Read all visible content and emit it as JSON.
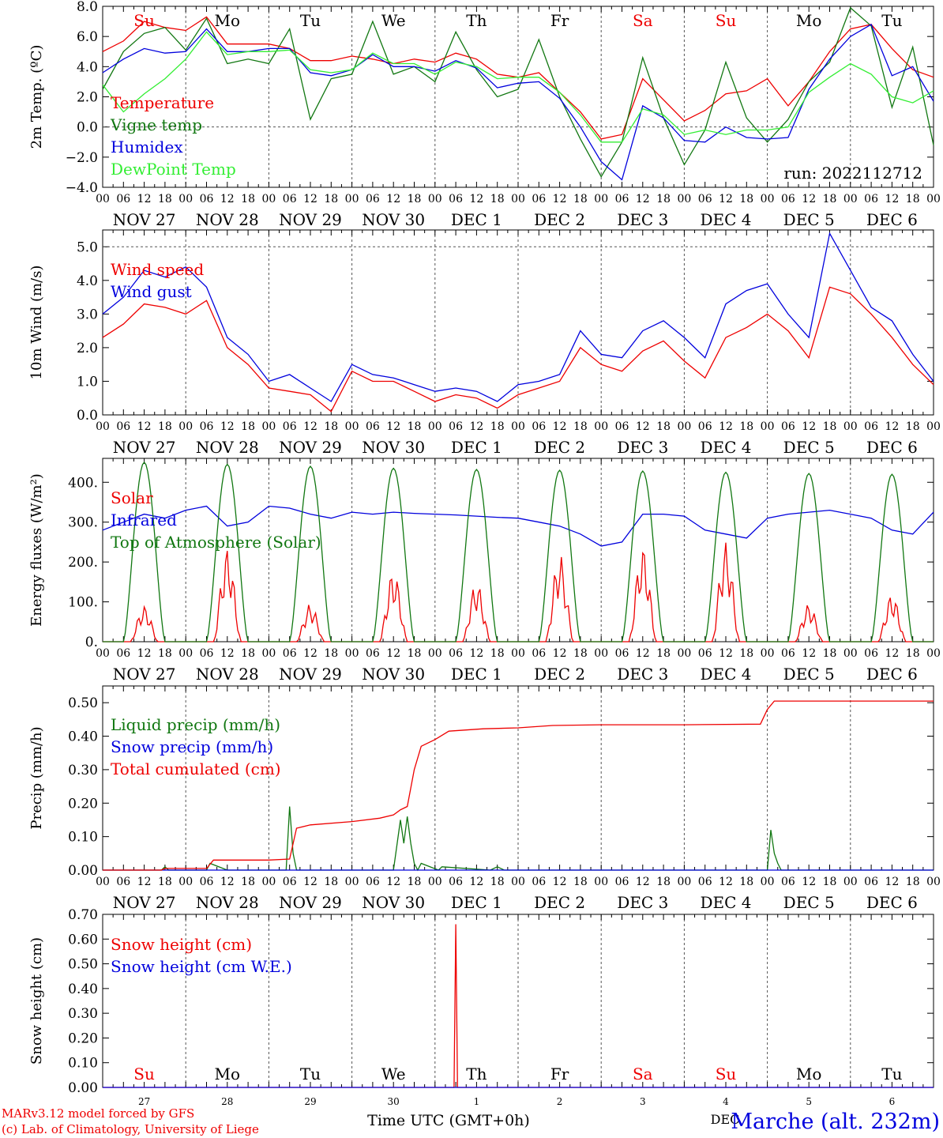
{
  "page": {
    "run_label": "run: 2022112712",
    "credit_model": "MARv3.12 model forced by GFS",
    "credit_lab": "(c) Lab. of Climatology, University of Liege",
    "location": "Marche (alt. 232m)",
    "time_axis_title": "Time UTC (GMT+0h)",
    "footer_month": "DEC"
  },
  "colors": {
    "red": "#ee0000",
    "green": "#117711",
    "blue": "#0000dd",
    "lime": "#33ee33",
    "grid": "#555555"
  },
  "time_axis": {
    "hour_ticks": [
      "00",
      "06",
      "12",
      "18"
    ],
    "end_tick": "00",
    "dates": [
      "NOV 27",
      "NOV 28",
      "NOV 29",
      "NOV 30",
      "DEC 1",
      "DEC 2",
      "DEC 3",
      "DEC 4",
      "DEC 5",
      "DEC 6"
    ],
    "weekdays": [
      {
        "label": "Su",
        "color": "#ee0000"
      },
      {
        "label": "Mo",
        "color": "#000000"
      },
      {
        "label": "Tu",
        "color": "#000000"
      },
      {
        "label": "We",
        "color": "#000000"
      },
      {
        "label": "Th",
        "color": "#000000"
      },
      {
        "label": "Fr",
        "color": "#000000"
      },
      {
        "label": "Sa",
        "color": "#ee0000"
      },
      {
        "label": "Su",
        "color": "#ee0000"
      },
      {
        "label": "Mo",
        "color": "#000000"
      },
      {
        "label": "Tu",
        "color": "#000000"
      }
    ],
    "day_numbers": [
      "27",
      "28",
      "29",
      "30",
      "1",
      "2",
      "3",
      "4",
      "5",
      "6"
    ]
  },
  "chart_data": [
    {
      "id": "temp",
      "type": "line",
      "ylabel": "2m Temp. (ºC)",
      "ylim": [
        -4,
        8
      ],
      "yticks": [
        "−4.0",
        "−2.0",
        "0.0",
        "2.0",
        "4.0",
        "6.0",
        "8.0"
      ],
      "ytick_values": [
        -4,
        -2,
        0,
        2,
        4,
        6,
        8
      ],
      "x_unit": "hours since NOV 27 00 UTC",
      "series": [
        {
          "name": "Temperature",
          "color": "#ee0000",
          "x": [
            0,
            6,
            12,
            18,
            24,
            30,
            36,
            42,
            48,
            54,
            60,
            66,
            72,
            78,
            84,
            90,
            96,
            102,
            108,
            114,
            120,
            126,
            132,
            138,
            144,
            150,
            156,
            162,
            168,
            174,
            180,
            186,
            192,
            198,
            204,
            210,
            216,
            222,
            228,
            234,
            240
          ],
          "y": [
            5,
            5.7,
            7,
            6.6,
            6.4,
            7.3,
            5.5,
            5.5,
            5.5,
            5.2,
            4.4,
            4.4,
            4.7,
            4.5,
            4.2,
            4.5,
            4.3,
            4.9,
            4.5,
            3.5,
            3.3,
            3.6,
            2.3,
            1,
            -0.8,
            -0.5,
            3.2,
            1.8,
            0.4,
            1.1,
            2.2,
            2.4,
            3.2,
            1.4,
            3,
            5,
            6.5,
            6.8,
            5.2,
            3.8,
            3.3
          ]
        },
        {
          "name": "Vigne temp",
          "color": "#117711",
          "x": [
            0,
            6,
            12,
            18,
            24,
            30,
            36,
            42,
            48,
            54,
            60,
            66,
            72,
            78,
            84,
            90,
            96,
            102,
            108,
            114,
            120,
            126,
            132,
            138,
            144,
            150,
            156,
            162,
            168,
            174,
            180,
            186,
            192,
            198,
            204,
            210,
            216,
            222,
            228,
            234,
            240
          ],
          "y": [
            2.5,
            5,
            6.2,
            6.6,
            5.1,
            7.2,
            4.2,
            4.5,
            4.2,
            6.5,
            0.5,
            3.2,
            3.5,
            7,
            3.5,
            4,
            3,
            6.3,
            3.8,
            2,
            2.5,
            5.8,
            2,
            -0.8,
            -3.3,
            -1,
            4.6,
            0.6,
            -2.5,
            -0.2,
            4.3,
            0.6,
            -1,
            0.5,
            3,
            4.3,
            7.9,
            6.7,
            1.3,
            5.3,
            -1.2
          ]
        },
        {
          "name": "Humidex",
          "color": "#0000dd",
          "x": [
            0,
            6,
            12,
            18,
            24,
            30,
            36,
            42,
            48,
            54,
            60,
            66,
            72,
            78,
            84,
            90,
            96,
            102,
            108,
            114,
            120,
            126,
            132,
            138,
            144,
            150,
            156,
            162,
            168,
            174,
            180,
            186,
            192,
            198,
            204,
            210,
            216,
            222,
            228,
            234,
            240
          ],
          "y": [
            3.6,
            4.5,
            5.2,
            4.9,
            5,
            6.5,
            5,
            5,
            5.2,
            5.2,
            3.6,
            3.4,
            3.8,
            4.8,
            4,
            4,
            3.7,
            4.4,
            3.9,
            2.6,
            2.9,
            3,
            1.9,
            0,
            -2.3,
            -3.5,
            1.4,
            0.6,
            -0.9,
            -1,
            0,
            -0.7,
            -0.8,
            -0.7,
            2.5,
            4.5,
            6,
            6.8,
            3.4,
            4,
            1.7
          ]
        },
        {
          "name": "DewPoint Temp",
          "color": "#33ee33",
          "x": [
            0,
            6,
            12,
            18,
            24,
            30,
            36,
            42,
            48,
            54,
            60,
            66,
            72,
            78,
            84,
            90,
            96,
            102,
            108,
            114,
            120,
            126,
            132,
            138,
            144,
            150,
            156,
            162,
            168,
            174,
            180,
            186,
            192,
            198,
            204,
            210,
            216,
            222,
            228,
            234,
            240
          ],
          "y": [
            2.8,
            1,
            2.2,
            3.2,
            4.5,
            6.3,
            4.8,
            5,
            5,
            5.1,
            3.8,
            3.6,
            3.8,
            4.9,
            4.2,
            4.2,
            3.5,
            4.3,
            4,
            3.2,
            3.3,
            3.3,
            2.3,
            0.8,
            -1,
            -1,
            1.2,
            0.8,
            -0.5,
            -0.2,
            -0.5,
            -0.2,
            -0.2,
            0,
            2.3,
            3.3,
            4.2,
            3.5,
            2,
            1.6,
            2.4
          ]
        }
      ],
      "legend_rows": 4
    },
    {
      "id": "wind",
      "type": "line",
      "ylabel": "10m Wind (m/s)",
      "ylim": [
        0,
        5.5
      ],
      "yticks": [
        "0.0",
        "1.0",
        "2.0",
        "3.0",
        "4.0",
        "5.0"
      ],
      "ytick_values": [
        0,
        1,
        2,
        3,
        4,
        5
      ],
      "hline": 5,
      "series": [
        {
          "name": "Wind speed",
          "color": "#ee0000",
          "x": [
            0,
            6,
            12,
            18,
            24,
            30,
            36,
            42,
            48,
            54,
            60,
            66,
            72,
            78,
            84,
            90,
            96,
            102,
            108,
            114,
            120,
            126,
            132,
            138,
            144,
            150,
            156,
            162,
            168,
            174,
            180,
            186,
            192,
            198,
            204,
            210,
            216,
            222,
            228,
            234,
            240
          ],
          "y": [
            2.3,
            2.7,
            3.3,
            3.2,
            3,
            3.4,
            2,
            1.5,
            0.8,
            0.7,
            0.6,
            0.1,
            1.3,
            1,
            1,
            0.7,
            0.4,
            0.6,
            0.5,
            0.2,
            0.6,
            0.8,
            1,
            2,
            1.5,
            1.3,
            1.9,
            2.2,
            1.6,
            1.1,
            2.3,
            2.6,
            3,
            2.5,
            1.7,
            3.8,
            3.6,
            3,
            2.3,
            1.5,
            0.9
          ]
        },
        {
          "name": "Wind gust",
          "color": "#0000dd",
          "x": [
            0,
            6,
            12,
            18,
            24,
            30,
            36,
            42,
            48,
            54,
            60,
            66,
            72,
            78,
            84,
            90,
            96,
            102,
            108,
            114,
            120,
            126,
            132,
            138,
            144,
            150,
            156,
            162,
            168,
            174,
            180,
            186,
            192,
            198,
            204,
            210,
            216,
            222,
            228,
            234,
            240
          ],
          "y": [
            3,
            3.5,
            4.3,
            4.1,
            4.4,
            3.8,
            2.3,
            1.8,
            1,
            1.2,
            0.8,
            0.4,
            1.5,
            1.2,
            1.1,
            0.9,
            0.7,
            0.8,
            0.7,
            0.4,
            0.9,
            1,
            1.2,
            2.5,
            1.8,
            1.7,
            2.5,
            2.8,
            2.3,
            1.7,
            3.3,
            3.7,
            3.9,
            3,
            2.3,
            5.4,
            4.3,
            3.2,
            2.8,
            1.8,
            1
          ]
        }
      ],
      "legend_rows": 2
    },
    {
      "id": "energy",
      "type": "line",
      "ylabel": "Energy fluxes (W/m²)",
      "ylim": [
        0,
        460
      ],
      "yticks": [
        "0.",
        "100.",
        "200.",
        "300.",
        "400."
      ],
      "ytick_values": [
        0,
        100,
        200,
        300,
        400
      ],
      "series": [
        {
          "name": "Solar",
          "color": "#ee0000",
          "peaks": [
            90,
            235,
            95,
            180,
            150,
            220,
            240,
            250,
            95,
            120
          ]
        },
        {
          "name": "Infrared",
          "color": "#0000dd",
          "x": [
            0,
            6,
            12,
            18,
            24,
            30,
            36,
            42,
            48,
            54,
            60,
            66,
            72,
            78,
            84,
            90,
            96,
            102,
            108,
            114,
            120,
            126,
            132,
            138,
            144,
            150,
            156,
            162,
            168,
            174,
            180,
            186,
            192,
            198,
            204,
            210,
            216,
            222,
            228,
            234,
            240
          ],
          "y": [
            280,
            300,
            320,
            310,
            330,
            340,
            290,
            300,
            340,
            335,
            320,
            310,
            325,
            320,
            325,
            322,
            320,
            318,
            315,
            312,
            310,
            300,
            290,
            270,
            240,
            250,
            320,
            320,
            315,
            280,
            270,
            260,
            310,
            320,
            325,
            330,
            320,
            310,
            280,
            270,
            325
          ]
        },
        {
          "name": "Top of Atmosphere (Solar)",
          "color": "#117711",
          "peaks": [
            450,
            445,
            440,
            435,
            432,
            430,
            428,
            425,
            422,
            420
          ]
        }
      ],
      "legend_rows": 3
    },
    {
      "id": "precip",
      "type": "line",
      "ylabel": "Precip (mm/h)",
      "ylim": [
        0,
        0.55
      ],
      "yticks": [
        "0.00",
        "0.10",
        "0.20",
        "0.30",
        "0.40",
        "0.50"
      ],
      "ytick_values": [
        0,
        0.1,
        0.2,
        0.3,
        0.4,
        0.5
      ],
      "series": [
        {
          "name": "Liquid precip (mm/h)",
          "color": "#117711",
          "x": [
            0,
            17,
            18,
            19,
            30,
            31,
            36,
            48,
            53,
            54,
            55,
            56,
            60,
            84,
            86,
            87,
            88,
            89,
            90,
            91,
            92,
            97,
            98,
            112,
            114,
            116,
            192,
            193,
            194,
            195,
            196,
            240
          ],
          "y": [
            0,
            0,
            0.01,
            0,
            0,
            0.02,
            0,
            0,
            0,
            0.19,
            0.05,
            0,
            0,
            0,
            0.15,
            0.08,
            0.16,
            0.08,
            0.02,
            0,
            0.02,
            0,
            0.01,
            0,
            0.01,
            0,
            0,
            0.12,
            0.05,
            0.02,
            0,
            0
          ]
        },
        {
          "name": "Snow precip (mm/h)",
          "color": "#0000dd",
          "x": [
            0,
            240
          ],
          "y": [
            0,
            0
          ]
        },
        {
          "name": "Total cumulated (cm)",
          "color": "#ee0000",
          "x": [
            0,
            17,
            18,
            30,
            32,
            48,
            54,
            56,
            60,
            72,
            80,
            84,
            86,
            88,
            90,
            92,
            96,
            100,
            110,
            120,
            130,
            144,
            168,
            190,
            192,
            194,
            240
          ],
          "y": [
            0,
            0,
            0.005,
            0.005,
            0.03,
            0.03,
            0.033,
            0.125,
            0.135,
            0.145,
            0.155,
            0.165,
            0.18,
            0.19,
            0.3,
            0.37,
            0.39,
            0.415,
            0.422,
            0.425,
            0.432,
            0.434,
            0.434,
            0.436,
            0.48,
            0.505,
            0.505
          ]
        }
      ],
      "legend_rows": 3
    },
    {
      "id": "snow",
      "type": "line",
      "ylabel": "Snow height (cm)",
      "ylim": [
        0,
        0.7
      ],
      "yticks": [
        "0.00",
        "0.10",
        "0.20",
        "0.30",
        "0.40",
        "0.50",
        "0.60",
        "0.70"
      ],
      "ytick_values": [
        0,
        0.1,
        0.2,
        0.3,
        0.4,
        0.5,
        0.6,
        0.7
      ],
      "series": [
        {
          "name": "Snow height (cm)",
          "color": "#ee0000",
          "x": [
            0,
            101.5,
            102,
            102.5,
            240
          ],
          "y": [
            0,
            0,
            0.66,
            0,
            0
          ]
        },
        {
          "name": "Snow height (cm W.E.)",
          "color": "#0000dd",
          "x": [
            0,
            240
          ],
          "y": [
            0,
            0
          ]
        }
      ],
      "legend_rows": 2
    }
  ]
}
